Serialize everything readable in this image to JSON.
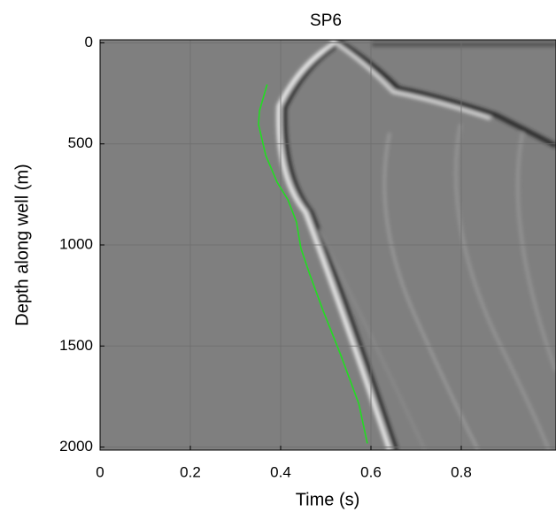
{
  "chart_data": {
    "type": "line",
    "title": "SP6",
    "x_label": "Time (s)",
    "y_label": "Depth along well (m)",
    "xlim": [
      0,
      1.0
    ],
    "xticks": [
      0,
      0.2,
      0.4,
      0.6,
      0.8
    ],
    "ylim": [
      -15,
      2015
    ],
    "yticks": [
      0,
      500,
      1000,
      1500,
      2000
    ],
    "y_inverted": true,
    "grid": true,
    "series": [
      {
        "color": "#22dd22",
        "x": [
          0.37,
          0.353,
          0.351,
          0.367,
          0.392,
          0.416,
          0.435,
          0.445,
          0.465,
          0.494,
          0.533,
          0.573,
          0.592
        ],
        "values": [
          206,
          338,
          404,
          557,
          689,
          776,
          886,
          1018,
          1149,
          1325,
          1544,
          1785,
          1982
        ]
      }
    ]
  }
}
